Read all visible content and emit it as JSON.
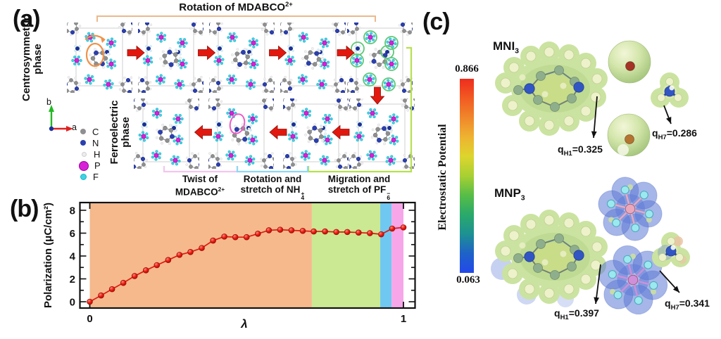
{
  "panel_a": {
    "label": "(a)",
    "top_bracket": {
      "text": "Rotation of MDABCO",
      "sup": "2+",
      "color": "#eab98c"
    },
    "row_labels": [
      {
        "line1": "Centrosymmetric",
        "line2": "phase"
      },
      {
        "line1": "Ferroelectric",
        "line2": "phase"
      }
    ],
    "axes": {
      "x": "a",
      "y": "b"
    },
    "legend": {
      "items": [
        {
          "symbol": "C",
          "color": "#8f8f8f"
        },
        {
          "symbol": "N",
          "color": "#2b3fae"
        },
        {
          "symbol": "H",
          "color": "#ededed"
        },
        {
          "symbol": "P",
          "color": "#d81fd8"
        },
        {
          "symbol": "F",
          "color": "#3fd3e4"
        }
      ]
    },
    "process_labels": [
      {
        "line1": "Twist of",
        "line2": "MDABCO",
        "sup": "2+",
        "bracket_color": "#f3c6ef"
      },
      {
        "line1": "Rotation and",
        "line2": "stretch of NH",
        "sub": "4",
        "sup": "+",
        "bracket_color": "#8fd8f2"
      },
      {
        "line1": "Migration and",
        "line2": "stretch of PF",
        "sub": "6",
        "sup": "−",
        "bracket_color": "#b5e14e"
      }
    ],
    "highlight_colors": {
      "orange": "#f0924a",
      "pink": "#ea5ec8",
      "green": "#5ec878"
    },
    "arrow_color": "#e2180f"
  },
  "panel_b": {
    "label": "(b)"
  },
  "chart_data": {
    "type": "line",
    "title": "",
    "xlabel": "λ",
    "ylabel": "Polarization (μC/cm²)",
    "x": [
      0,
      0.036,
      0.071,
      0.107,
      0.143,
      0.179,
      0.214,
      0.25,
      0.286,
      0.321,
      0.357,
      0.393,
      0.429,
      0.464,
      0.5,
      0.536,
      0.571,
      0.607,
      0.643,
      0.679,
      0.714,
      0.75,
      0.786,
      0.821,
      0.857,
      0.893,
      0.929,
      0.964,
      1
    ],
    "y": [
      0,
      0.55,
      1.1,
      1.65,
      2.25,
      2.75,
      3.2,
      3.65,
      4.1,
      4.35,
      4.7,
      5.35,
      5.7,
      5.65,
      5.65,
      5.95,
      6.25,
      6.3,
      6.25,
      6.2,
      6.15,
      6.15,
      6.1,
      6.1,
      6.05,
      6.0,
      5.9,
      6.4,
      6.5
    ],
    "xlim": [
      -0.032,
      1.042
    ],
    "ylim": [
      -0.55,
      8.7
    ],
    "xticks": [
      0,
      1
    ],
    "yticks": [
      0,
      2,
      4,
      6,
      8
    ],
    "grid": false,
    "legend_position": "none",
    "series_color": "#e2180f",
    "background_regions": [
      {
        "label": "Rotation of MDABCO2+",
        "from": 0,
        "to": 0.708,
        "color": "#f5b98c"
      },
      {
        "label": "Migration and stretch of PF6-",
        "from": 0.708,
        "to": 0.926,
        "color": "#cbe893"
      },
      {
        "label": "Rotation and stretch of NH4+",
        "from": 0.926,
        "to": 0.962,
        "color": "#6fc8f2"
      },
      {
        "label": "Twist of MDABCO2+",
        "from": 0.962,
        "to": 1.0,
        "color": "#f7a6ea"
      }
    ]
  },
  "panel_c": {
    "label": "(c)",
    "colorbar": {
      "title": "Electrostatic Potential",
      "max": "0.866",
      "min": "0.063",
      "gradient": [
        "#ee2c1e",
        "#f15b22",
        "#f0872b",
        "#eeb331",
        "#ddd52e",
        "#a8d033",
        "#57bd47",
        "#2aa96b",
        "#1d9193",
        "#1e62c8",
        "#2348ea"
      ]
    },
    "palette": {
      "surface": "#cbe3a0",
      "surface_dark": "#bdd890",
      "h_ball": "#edf2ca",
      "c_ball": "#8fae8c",
      "n_ball": "#3156c4",
      "blue_lobe": "#5d7ad6",
      "f_ball": "#9be8ee",
      "p_pink": "#eaa8bc",
      "p_violet": "#cf8fd9",
      "iodine_red": "#a33426",
      "iodine_orange": "#b5742f"
    },
    "molecules": [
      {
        "name": "MNI",
        "sub": "3",
        "annotations": [
          {
            "pre": "q",
            "sub": "H1",
            "text": "=0.325"
          },
          {
            "pre": "q",
            "sub": "H7",
            "text": "=0.286"
          }
        ]
      },
      {
        "name": "MNP",
        "sub": "3",
        "annotations": [
          {
            "pre": "q",
            "sub": "H1",
            "text": "=0.397"
          },
          {
            "pre": "q",
            "sub": "H7",
            "text": "=0.341"
          }
        ]
      }
    ]
  }
}
